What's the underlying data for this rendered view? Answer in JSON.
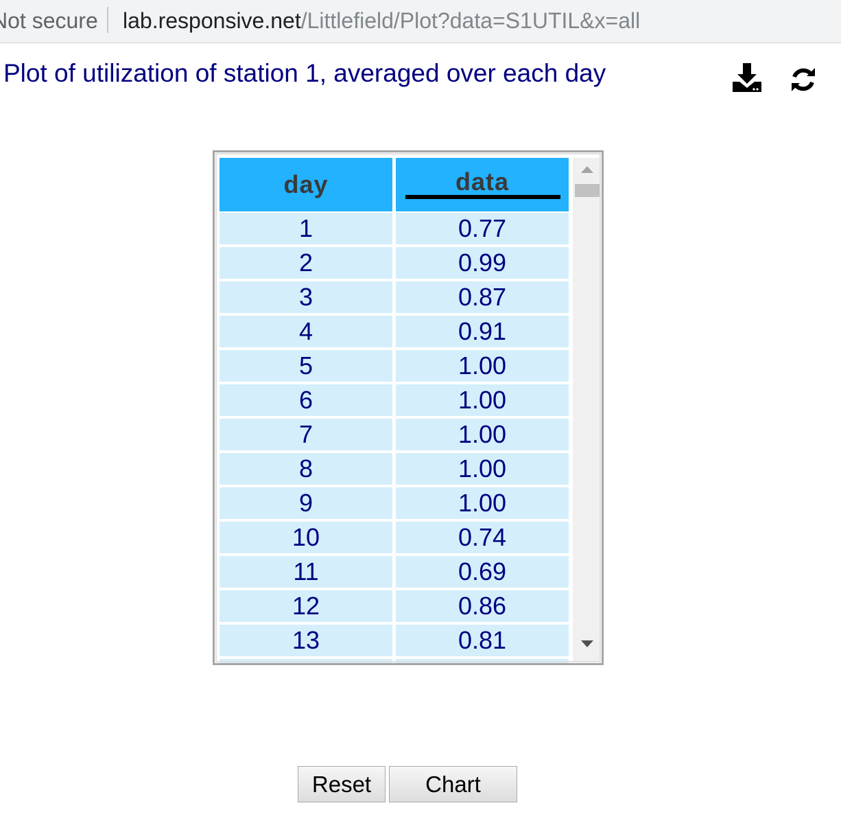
{
  "browser": {
    "security_text": "Not secure",
    "url_host": "lab.responsive.net",
    "url_path": "/Littlefield/Plot?data=S1UTIL&x=all"
  },
  "page": {
    "title": "Plot of utilization of station 1, averaged over each day"
  },
  "toolbar": {
    "icons": [
      "download-icon",
      "refresh-icon"
    ]
  },
  "table": {
    "headers": {
      "day": "day",
      "data": "data"
    },
    "rows": [
      {
        "day": "1",
        "data": "0.77"
      },
      {
        "day": "2",
        "data": "0.99"
      },
      {
        "day": "3",
        "data": "0.87"
      },
      {
        "day": "4",
        "data": "0.91"
      },
      {
        "day": "5",
        "data": "1.00"
      },
      {
        "day": "6",
        "data": "1.00"
      },
      {
        "day": "7",
        "data": "1.00"
      },
      {
        "day": "8",
        "data": "1.00"
      },
      {
        "day": "9",
        "data": "1.00"
      },
      {
        "day": "10",
        "data": "0.74"
      },
      {
        "day": "11",
        "data": "0.69"
      },
      {
        "day": "12",
        "data": "0.86"
      },
      {
        "day": "13",
        "data": "0.81"
      }
    ]
  },
  "buttons": {
    "reset_label": "Reset",
    "chart_label": "Chart"
  },
  "colors": {
    "title": "#000080",
    "header_bg": "#22b2fe",
    "cell_bg": "#d4eefc"
  }
}
